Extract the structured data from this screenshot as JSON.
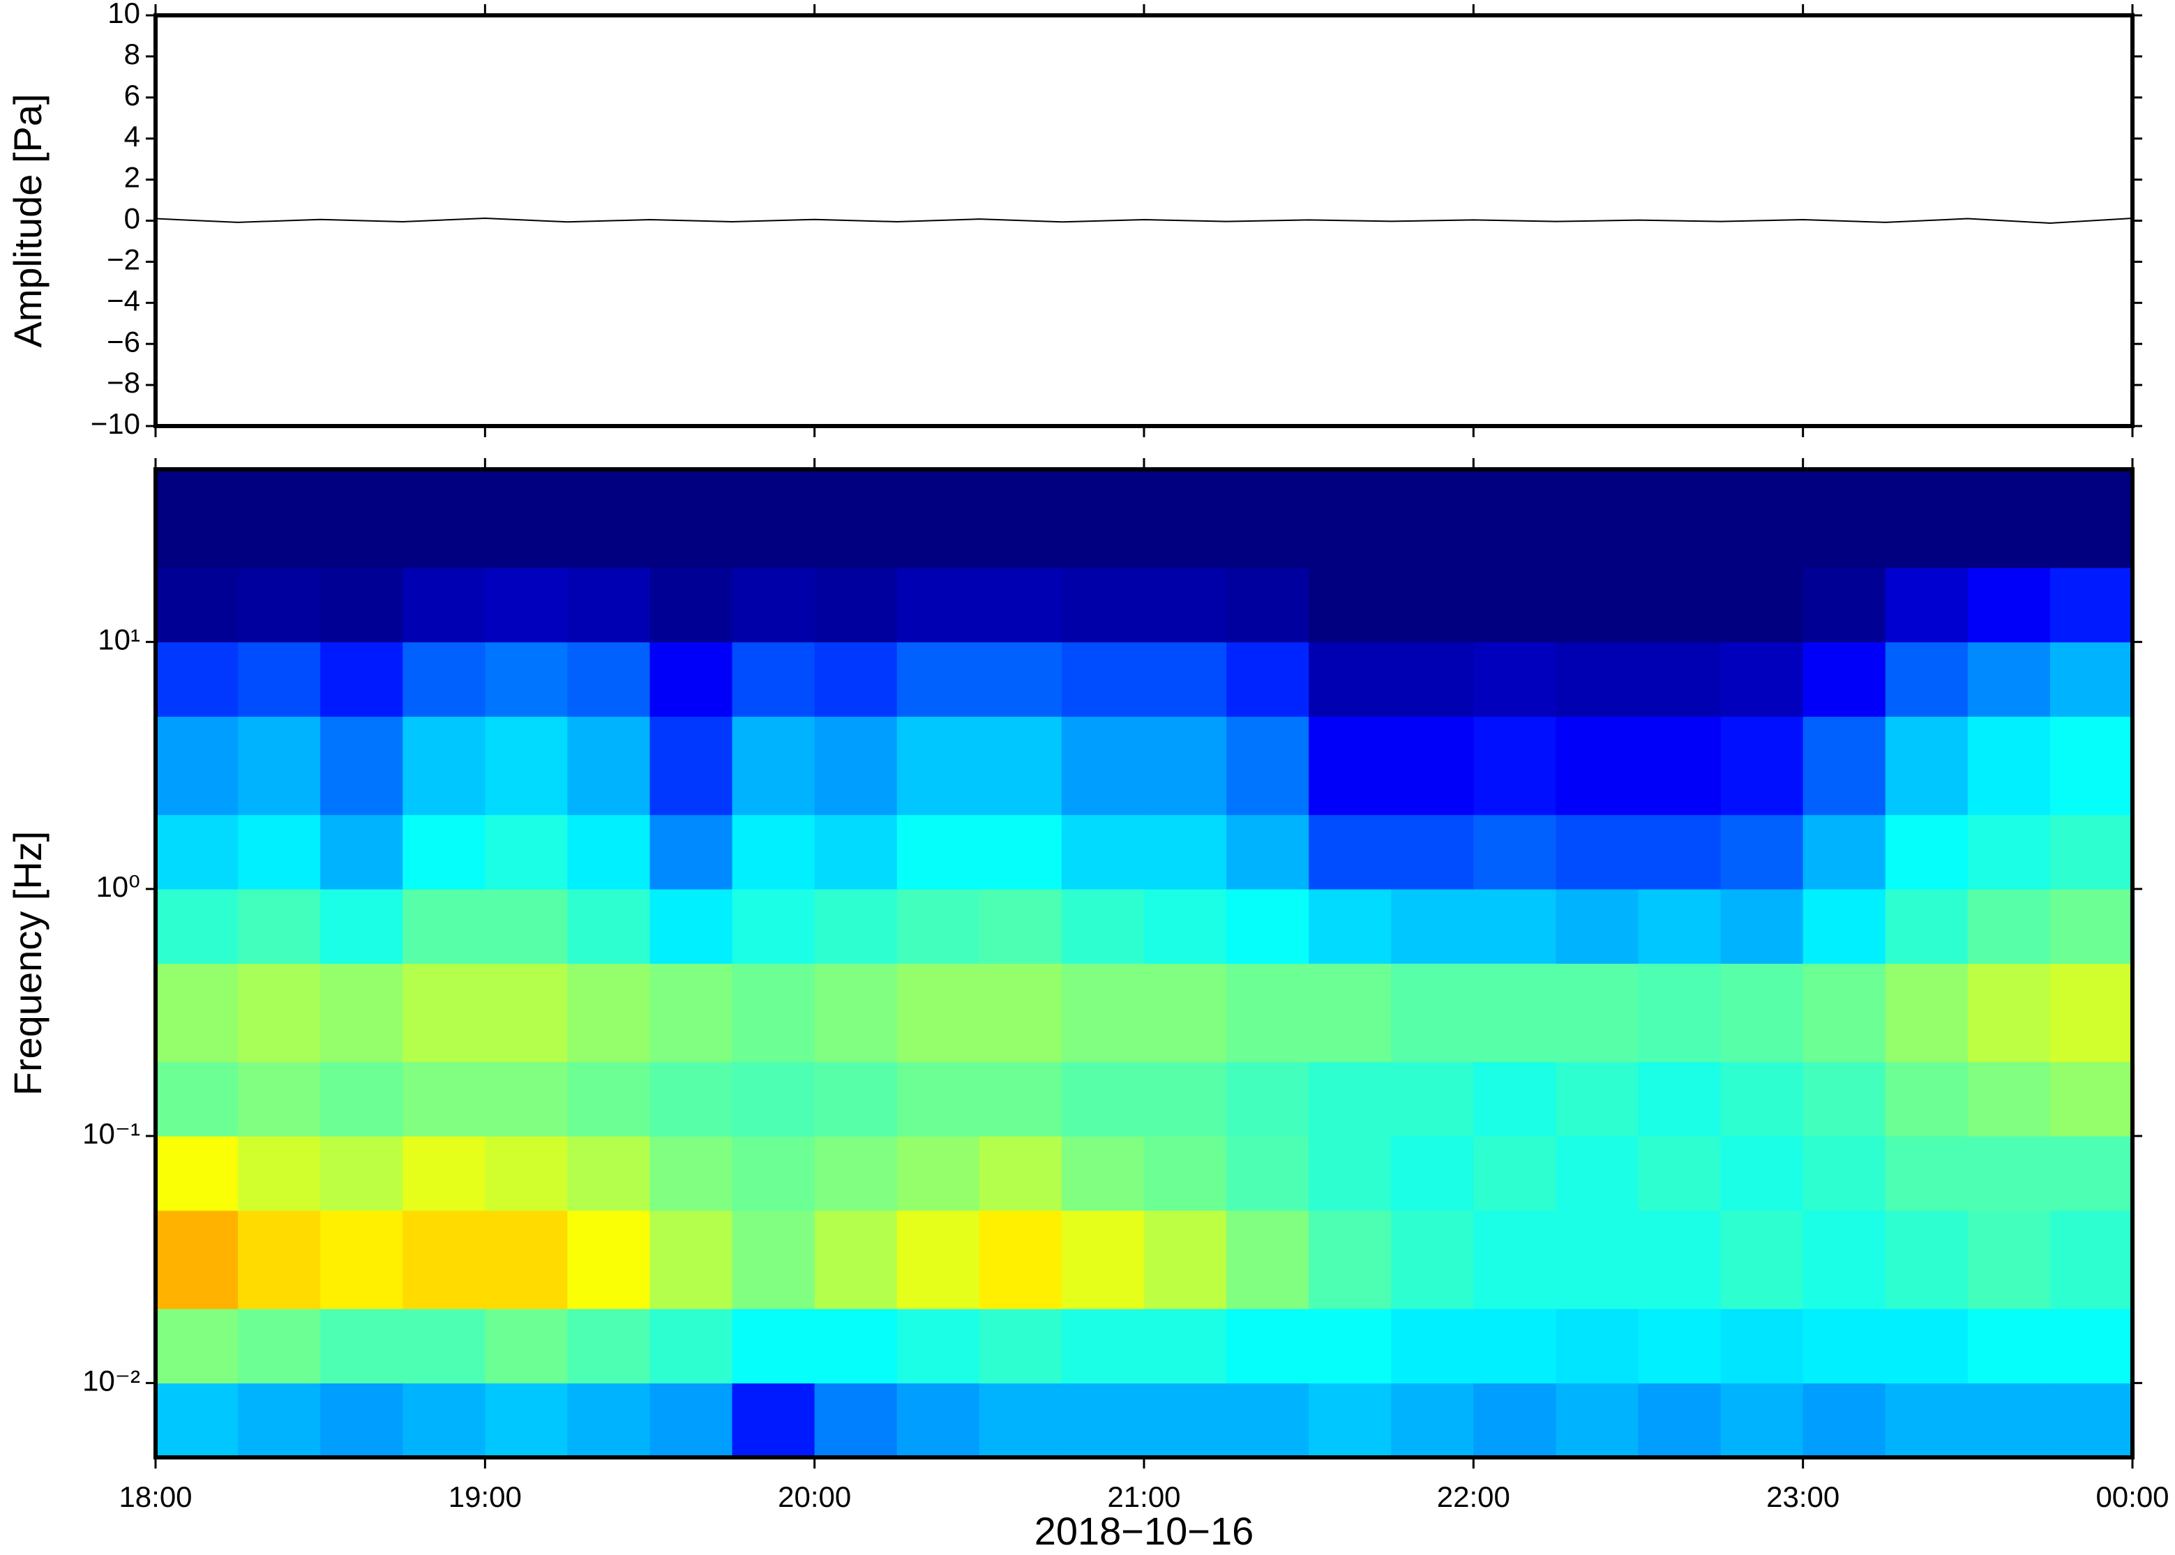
{
  "chart_data": [
    {
      "type": "line",
      "ylabel": "Amplitude [Pa]",
      "color": "#000000",
      "xlim": [
        18,
        24
      ],
      "xticks": [
        18,
        19,
        20,
        21,
        22,
        23,
        24
      ],
      "ylim": [
        -10,
        10
      ],
      "yticks": [
        {
          "value": -10,
          "label": "−10"
        },
        {
          "value": -8,
          "label": "−8"
        },
        {
          "value": -6,
          "label": "−6"
        },
        {
          "value": -4,
          "label": "−4"
        },
        {
          "value": -2,
          "label": "−2"
        },
        0,
        2,
        4,
        6,
        8,
        10
      ],
      "x": [
        18,
        18.25,
        18.5,
        18.75,
        19,
        19.25,
        19.5,
        19.75,
        20,
        20.25,
        20.5,
        20.75,
        21,
        21.25,
        21.5,
        21.75,
        22,
        22.25,
        22.5,
        22.75,
        23,
        23.25,
        23.5,
        23.75,
        24
      ],
      "values": [
        0.1,
        -0.08,
        0.06,
        -0.05,
        0.12,
        -0.06,
        0.05,
        -0.05,
        0.06,
        -0.05,
        0.08,
        -0.06,
        0.05,
        -0.04,
        0.04,
        -0.03,
        0.04,
        -0.04,
        0.03,
        -0.04,
        0.05,
        -0.08,
        0.1,
        -0.12,
        0.12
      ]
    },
    {
      "type": "heatmap",
      "ylabel": "Frequency [Hz]",
      "xlabel": "2018−10−16",
      "log_y": true,
      "colormap": "jet",
      "zlim": [
        0,
        1
      ],
      "xlim": [
        18,
        24
      ],
      "xticks": [
        {
          "value": 18,
          "label": "18:00"
        },
        {
          "value": 19,
          "label": "19:00"
        },
        {
          "value": 20,
          "label": "20:00"
        },
        {
          "value": 21,
          "label": "21:00"
        },
        {
          "value": 22,
          "label": "22:00"
        },
        {
          "value": 23,
          "label": "23:00"
        },
        {
          "value": 24,
          "label": "00:00"
        }
      ],
      "ylim": [
        0.005,
        50
      ],
      "yticks": [
        {
          "value": 0.01,
          "label": "10⁻²"
        },
        {
          "value": 0.1,
          "label": "10⁻¹"
        },
        {
          "value": 1,
          "label": "10⁰"
        },
        {
          "value": 10,
          "label": "10¹"
        }
      ],
      "xbins": [
        18,
        18.25,
        18.5,
        18.75,
        19,
        19.25,
        19.5,
        19.75,
        20,
        20.25,
        20.5,
        20.75,
        21,
        21.25,
        21.5,
        21.75,
        22,
        22.25,
        22.5,
        22.75,
        23,
        23.25,
        23.5,
        23.75,
        24
      ],
      "ybins": [
        0.005,
        0.01,
        0.02,
        0.05,
        0.1,
        0.2,
        0.5,
        1,
        2,
        5,
        10,
        20,
        50
      ],
      "values": [
        [
          0.32,
          0.3,
          0.28,
          0.3,
          0.32,
          0.3,
          0.28,
          0.15,
          0.25,
          0.28,
          0.3,
          0.3,
          0.3,
          0.3,
          0.32,
          0.3,
          0.28,
          0.3,
          0.28,
          0.3,
          0.28,
          0.3,
          0.3,
          0.3
        ],
        [
          0.5,
          0.48,
          0.45,
          0.45,
          0.48,
          0.45,
          0.42,
          0.38,
          0.38,
          0.4,
          0.42,
          0.4,
          0.4,
          0.38,
          0.38,
          0.36,
          0.36,
          0.35,
          0.36,
          0.35,
          0.36,
          0.36,
          0.38,
          0.38
        ],
        [
          0.7,
          0.66,
          0.64,
          0.66,
          0.66,
          0.62,
          0.55,
          0.5,
          0.55,
          0.6,
          0.64,
          0.6,
          0.56,
          0.5,
          0.45,
          0.42,
          0.4,
          0.4,
          0.4,
          0.42,
          0.4,
          0.42,
          0.44,
          0.42
        ],
        [
          0.62,
          0.58,
          0.56,
          0.6,
          0.58,
          0.55,
          0.5,
          0.48,
          0.5,
          0.52,
          0.55,
          0.5,
          0.48,
          0.45,
          0.42,
          0.4,
          0.42,
          0.4,
          0.42,
          0.4,
          0.42,
          0.45,
          0.45,
          0.45
        ],
        [
          0.48,
          0.5,
          0.48,
          0.5,
          0.5,
          0.48,
          0.46,
          0.45,
          0.46,
          0.48,
          0.48,
          0.46,
          0.46,
          0.44,
          0.42,
          0.42,
          0.4,
          0.42,
          0.4,
          0.42,
          0.44,
          0.48,
          0.5,
          0.52
        ],
        [
          0.52,
          0.54,
          0.52,
          0.55,
          0.55,
          0.52,
          0.5,
          0.48,
          0.5,
          0.52,
          0.52,
          0.5,
          0.5,
          0.48,
          0.48,
          0.46,
          0.46,
          0.46,
          0.45,
          0.46,
          0.48,
          0.52,
          0.56,
          0.58
        ],
        [
          0.42,
          0.44,
          0.4,
          0.46,
          0.46,
          0.42,
          0.36,
          0.4,
          0.42,
          0.44,
          0.45,
          0.42,
          0.4,
          0.38,
          0.34,
          0.32,
          0.32,
          0.3,
          0.32,
          0.3,
          0.36,
          0.42,
          0.46,
          0.48
        ],
        [
          0.34,
          0.36,
          0.3,
          0.38,
          0.4,
          0.36,
          0.26,
          0.36,
          0.34,
          0.38,
          0.38,
          0.34,
          0.34,
          0.3,
          0.2,
          0.2,
          0.22,
          0.2,
          0.2,
          0.22,
          0.3,
          0.38,
          0.4,
          0.42
        ],
        [
          0.28,
          0.3,
          0.24,
          0.32,
          0.34,
          0.3,
          0.18,
          0.3,
          0.28,
          0.32,
          0.32,
          0.28,
          0.28,
          0.24,
          0.12,
          0.12,
          0.14,
          0.12,
          0.12,
          0.14,
          0.22,
          0.32,
          0.36,
          0.38
        ],
        [
          0.18,
          0.2,
          0.15,
          0.22,
          0.24,
          0.22,
          0.12,
          0.2,
          0.18,
          0.22,
          0.22,
          0.2,
          0.2,
          0.16,
          0.05,
          0.05,
          0.06,
          0.05,
          0.05,
          0.06,
          0.12,
          0.22,
          0.26,
          0.3
        ],
        [
          0.02,
          0.03,
          0.02,
          0.05,
          0.06,
          0.05,
          0.02,
          0.04,
          0.03,
          0.05,
          0.05,
          0.04,
          0.04,
          0.03,
          0,
          0,
          0,
          0,
          0,
          0,
          0.02,
          0.08,
          0.12,
          0.15
        ],
        [
          0,
          0,
          0,
          0,
          0,
          0,
          0,
          0,
          0,
          0,
          0,
          0,
          0,
          0,
          0,
          0,
          0,
          0,
          0,
          0,
          0,
          0,
          0,
          0
        ]
      ]
    }
  ]
}
